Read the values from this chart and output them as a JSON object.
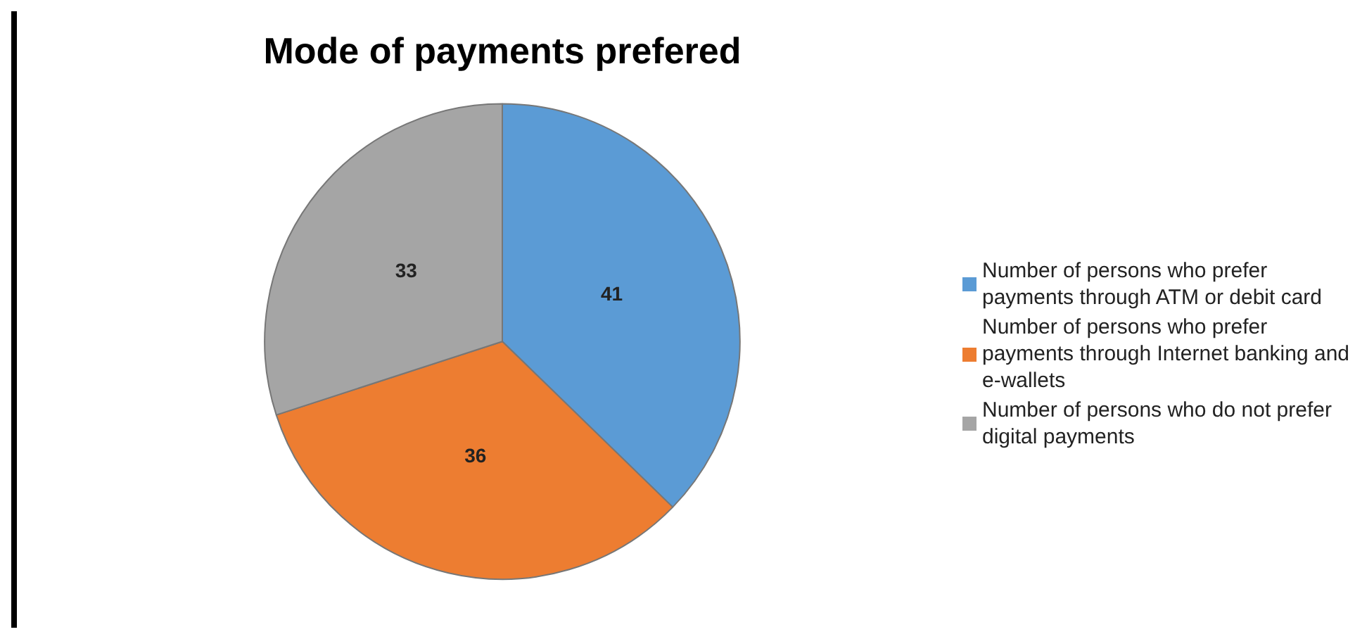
{
  "chart_data": {
    "type": "pie",
    "title": "Mode of payments prefered",
    "categories": [
      "Number of persons who prefer payments through ATM or debit card",
      "Number of persons who prefer payments through Internet banking and e-wallets",
      "Number of persons who do not prefer digital payments"
    ],
    "values": [
      41,
      36,
      33
    ],
    "colors": [
      "#5b9bd5",
      "#ed7d31",
      "#a5a5a5"
    ],
    "data_labels": true,
    "legend": "right"
  }
}
